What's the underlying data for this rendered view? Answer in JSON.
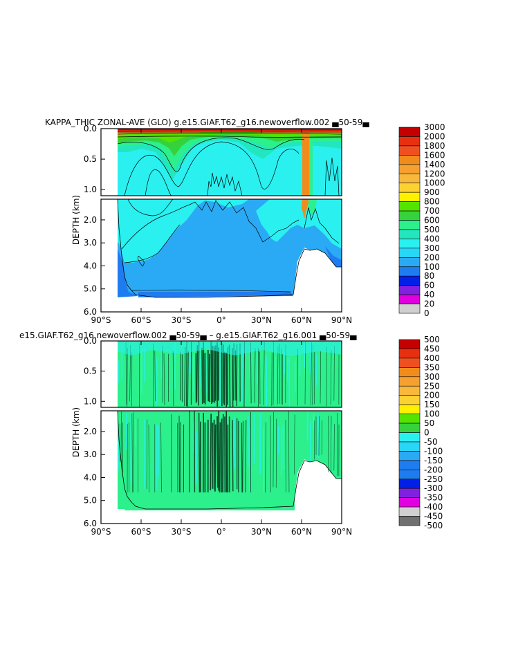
{
  "palette": {
    "p500": "#c40000",
    "p600": "#e83010",
    "p700": "#f05020",
    "p800": "#f08c1c",
    "p900": "#f5a030",
    "p1000": "#f8b83c",
    "p1100": "#fcd232",
    "p1200": "#fff000",
    "p1300": "#54e400",
    "p1400": "#36d23c",
    "p1500": "#2cf08c",
    "p1600": "#22e6be",
    "p1700": "#2af0f0",
    "p1800": "#28d6f6",
    "p1900": "#2aaaf4",
    "p2000": "#1e7cf0",
    "p2100": "#0020e8",
    "p2200": "#8020e0",
    "p2300": "#e000e0",
    "p2400": "#d0d0d0",
    "p2500": "#707070"
  },
  "chart_data": [
    {
      "type": "heatmap",
      "title": "KAPPA_THIC ZONAL-AVE (GLO) g.e15.GIAF.T62_g16.newoverflow.002 ▄50-59▄",
      "ylabel": "DEPTH (km)",
      "x_ticks": [
        "90°S",
        "60°S",
        "30°S",
        "0°",
        "30°N",
        "60°N",
        "90°N"
      ],
      "y_ticks_upper": [
        "0.0",
        "0.5",
        "1.0"
      ],
      "y_ticks_lower": [
        "2.0",
        "3.0",
        "4.0",
        "5.0",
        "6.0"
      ],
      "xlim": [
        -90,
        90
      ],
      "ylim_upper": [
        0,
        1.1
      ],
      "ylim_lower": [
        1.1,
        6.0
      ],
      "levels": [
        "0",
        "20",
        "40",
        "60",
        "80",
        "100",
        "200",
        "300",
        "400",
        "500",
        "600",
        "700",
        "800",
        "900",
        "1000",
        "1200",
        "1400",
        "1600",
        "1800",
        "2000",
        "3000"
      ]
    },
    {
      "type": "heatmap",
      "title": "e15.GIAF.T62_g16.newoverflow.002 ▄50-59▄ – g.e15.GIAF.T62_g16.001 ▄50-59▄",
      "ylabel": "DEPTH (km)",
      "x_ticks": [
        "90°S",
        "60°S",
        "30°S",
        "0°",
        "30°N",
        "60°N",
        "90°N"
      ],
      "y_ticks_upper": [
        "0.0",
        "0.5",
        "1.0"
      ],
      "y_ticks_lower": [
        "2.0",
        "3.0",
        "4.0",
        "5.0",
        "6.0"
      ],
      "xlim": [
        -90,
        90
      ],
      "ylim_upper": [
        0,
        1.1
      ],
      "ylim_lower": [
        1.1,
        6.0
      ],
      "levels": [
        "-500",
        "-450",
        "-400",
        "-350",
        "-300",
        "-250",
        "-200",
        "-150",
        "-100",
        "-50",
        "0",
        "50",
        "100",
        "150",
        "200",
        "250",
        "300",
        "350",
        "400",
        "450",
        "500"
      ]
    }
  ]
}
